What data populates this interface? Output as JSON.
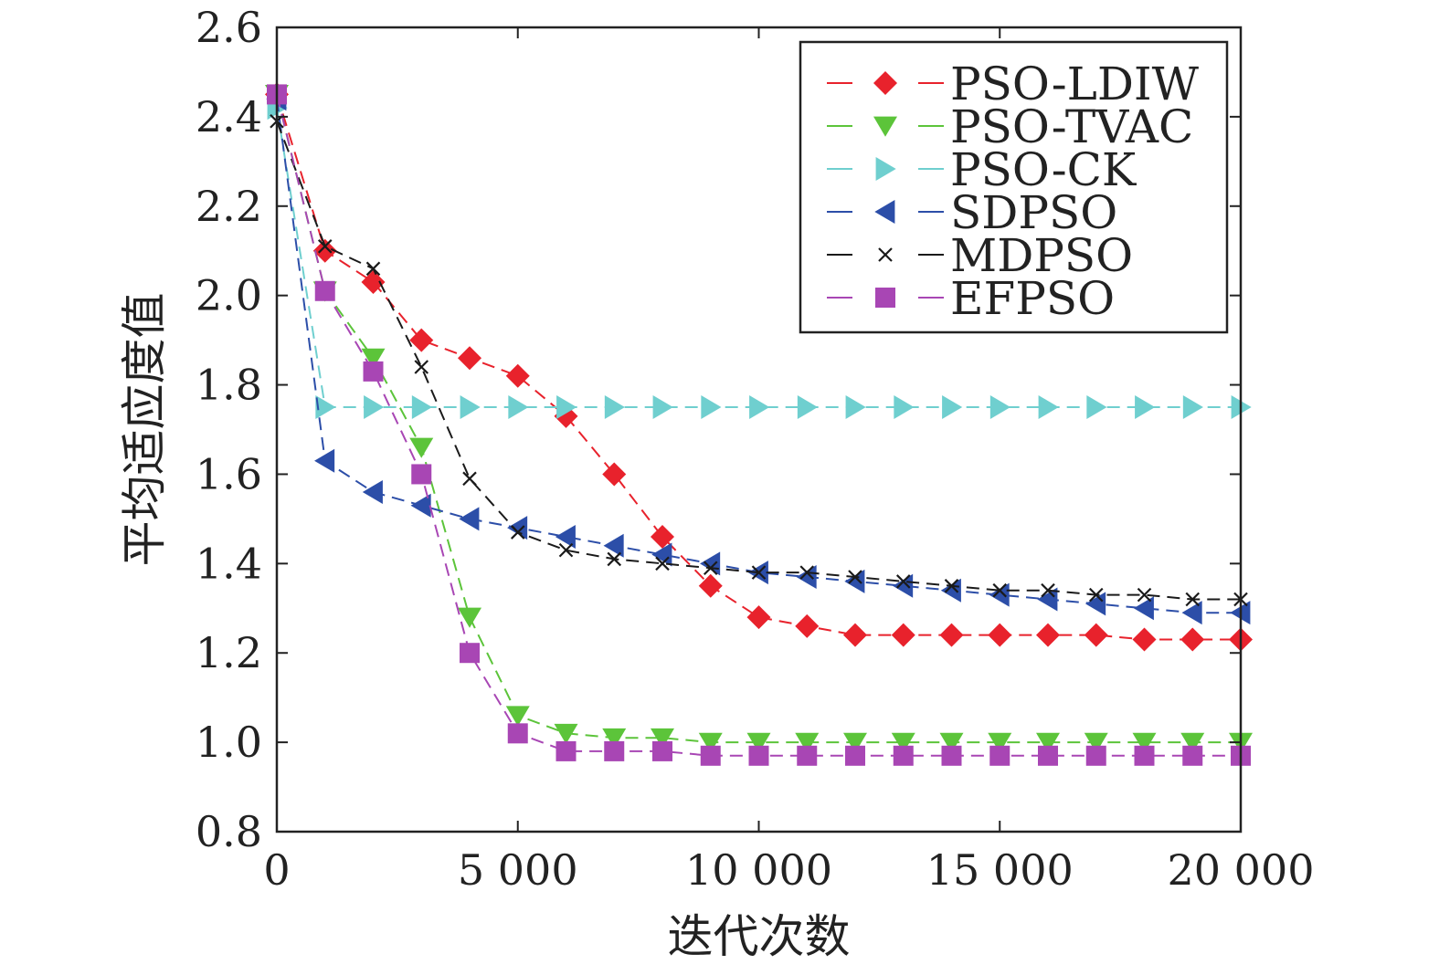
{
  "chart_data": {
    "type": "line",
    "title": "",
    "xlabel": "迭代次数",
    "ylabel": "平均适应度值",
    "xlim": [
      0,
      20000
    ],
    "ylim": [
      0.8,
      2.6
    ],
    "x_ticks": [
      0,
      5000,
      10000,
      15000,
      20000
    ],
    "x_tick_labels": [
      "0",
      "5 000",
      "10 000",
      "15 000",
      "20 000"
    ],
    "y_ticks": [
      0.8,
      1.0,
      1.2,
      1.4,
      1.6,
      1.8,
      2.0,
      2.2,
      2.4,
      2.6
    ],
    "y_tick_labels": [
      "0.8",
      "1.0",
      "1.2",
      "1.4",
      "1.6",
      "1.8",
      "2.0",
      "2.2",
      "2.4",
      "2.6"
    ],
    "grid": false,
    "legend_position": "top-right",
    "x": [
      0,
      1000,
      2000,
      3000,
      4000,
      5000,
      6000,
      7000,
      8000,
      9000,
      10000,
      11000,
      12000,
      13000,
      14000,
      15000,
      16000,
      17000,
      18000,
      19000,
      20000
    ],
    "series": [
      {
        "name": "PSO-LDIW",
        "color": "#e8222c",
        "marker": "diamond",
        "values": [
          2.45,
          2.1,
          2.03,
          1.9,
          1.86,
          1.82,
          1.73,
          1.6,
          1.46,
          1.35,
          1.28,
          1.26,
          1.24,
          1.24,
          1.24,
          1.24,
          1.24,
          1.24,
          1.23,
          1.23,
          1.23
        ]
      },
      {
        "name": "PSO-TVAC",
        "color": "#5cc43a",
        "marker": "triangle-down",
        "values": [
          2.45,
          2.01,
          1.86,
          1.66,
          1.28,
          1.06,
          1.02,
          1.01,
          1.01,
          1.0,
          1.0,
          1.0,
          1.0,
          1.0,
          1.0,
          1.0,
          1.0,
          1.0,
          1.0,
          1.0,
          1.0
        ]
      },
      {
        "name": "PSO-CK",
        "color": "#6fcfcf",
        "marker": "triangle-right",
        "values": [
          2.42,
          1.75,
          1.75,
          1.75,
          1.75,
          1.75,
          1.75,
          1.75,
          1.75,
          1.75,
          1.75,
          1.75,
          1.75,
          1.75,
          1.75,
          1.75,
          1.75,
          1.75,
          1.75,
          1.75,
          1.75
        ]
      },
      {
        "name": "SDPSO",
        "color": "#2c4ea8",
        "marker": "triangle-left",
        "values": [
          2.44,
          1.63,
          1.56,
          1.53,
          1.5,
          1.48,
          1.46,
          1.44,
          1.42,
          1.4,
          1.38,
          1.37,
          1.36,
          1.35,
          1.34,
          1.33,
          1.32,
          1.31,
          1.3,
          1.29,
          1.29
        ]
      },
      {
        "name": "MDPSO",
        "color": "#1a1a1a",
        "marker": "x",
        "values": [
          2.39,
          2.11,
          2.06,
          1.84,
          1.59,
          1.47,
          1.43,
          1.41,
          1.4,
          1.39,
          1.38,
          1.38,
          1.37,
          1.36,
          1.35,
          1.34,
          1.34,
          1.33,
          1.33,
          1.32,
          1.32
        ]
      },
      {
        "name": "EFPSO",
        "color": "#a846b4",
        "marker": "square",
        "values": [
          2.45,
          2.01,
          1.83,
          1.6,
          1.2,
          1.02,
          0.98,
          0.98,
          0.98,
          0.97,
          0.97,
          0.97,
          0.97,
          0.97,
          0.97,
          0.97,
          0.97,
          0.97,
          0.97,
          0.97,
          0.97
        ]
      }
    ]
  }
}
